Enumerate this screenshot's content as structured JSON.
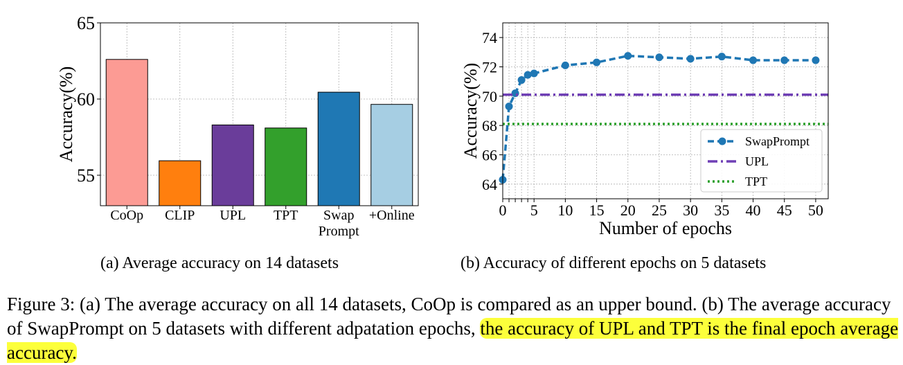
{
  "chart_data": [
    {
      "type": "bar",
      "ylabel": "Accuracy(%)",
      "ylim": [
        53,
        65
      ],
      "yticks": [
        55,
        60,
        65
      ],
      "grid": true,
      "categories": [
        "CoOp",
        "CLIP",
        "UPL",
        "TPT",
        "Swap\nPrompt",
        "+Online"
      ],
      "values": [
        62.6,
        55.95,
        58.3,
        58.1,
        60.45,
        59.65
      ],
      "colors": [
        "#fc9b94",
        "#ff7f0e",
        "#6a3d9a",
        "#33a02c",
        "#1f78b4",
        "#a6cee3"
      ],
      "caption": "(a) Average accuracy on 14 datasets"
    },
    {
      "type": "line",
      "xlabel": "Number of epochs",
      "ylabel": "Accuracy(%)",
      "xlim": [
        0,
        52
      ],
      "ylim": [
        63,
        75
      ],
      "xticks": [
        0,
        1,
        2,
        3,
        4,
        5,
        10,
        15,
        20,
        25,
        30,
        35,
        40,
        45,
        50
      ],
      "xticklabels": [
        "0",
        "",
        "",
        "",
        "",
        "5",
        "10",
        "15",
        "20",
        "25",
        "30",
        "35",
        "40",
        "45",
        "50"
      ],
      "yticks": [
        64,
        66,
        68,
        70,
        72,
        74
      ],
      "grid": true,
      "legend_position": "lower-right",
      "series": [
        {
          "name": "SwapPrompt",
          "style": "dashed-marker",
          "color": "#1f77b4",
          "x": [
            0,
            1,
            2,
            3,
            4,
            5,
            10,
            15,
            20,
            25,
            30,
            35,
            40,
            45,
            50
          ],
          "y": [
            64.3,
            69.3,
            70.2,
            71.1,
            71.45,
            71.55,
            72.1,
            72.3,
            72.75,
            72.65,
            72.55,
            72.7,
            72.45,
            72.45,
            72.45
          ]
        },
        {
          "name": "UPL",
          "style": "dashdot",
          "color": "#6f3fb5",
          "x": [
            0,
            52
          ],
          "y": [
            70.1,
            70.1
          ]
        },
        {
          "name": "TPT",
          "style": "dotted",
          "color": "#2ca02c",
          "x": [
            0,
            52
          ],
          "y": [
            68.1,
            68.1
          ]
        }
      ],
      "caption": "(b) Accuracy of different epochs on 5 datasets"
    }
  ],
  "figure_caption": {
    "label": "Figure 3:",
    "part_a_marker": "(a)",
    "part_a_text": "The average accuracy on all 14 datasets, CoOp is compared as an upper bound.",
    "part_b_marker": "(b)",
    "part_b_text": "The average accuracy of SwapPrompt on 5 datasets with different adpatation epochs,",
    "highlighted_text": "the accuracy of UPL and TPT is the final epoch average accuracy."
  }
}
